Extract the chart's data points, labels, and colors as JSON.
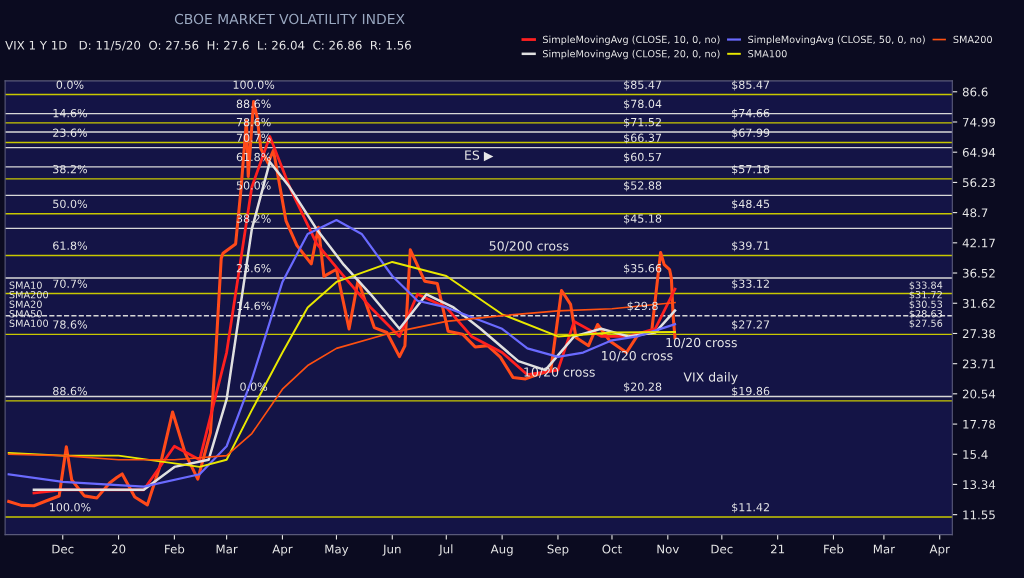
{
  "chart_data": {
    "type": "line",
    "title": "CBOE MARKET VOLATILITY INDEX",
    "subtitle": "VIX 1 Y 1D   D: 11/5/20  O: 27.56  H: 27.6  L: 26.04  C: 26.86  R: 1.56",
    "log": true,
    "xlim": [
      "2019-10-30",
      "2021-04-08"
    ],
    "xticks": [
      {
        "value": "2019-12-01",
        "label": "Dec"
      },
      {
        "value": "2020-01-01",
        "label": "20"
      },
      {
        "value": "2020-02-01",
        "label": "Feb"
      },
      {
        "value": "2020-03-01",
        "label": "Mar"
      },
      {
        "value": "2020-04-01",
        "label": "Apr"
      },
      {
        "value": "2020-05-01",
        "label": "May"
      },
      {
        "value": "2020-06-01",
        "label": "Jun"
      },
      {
        "value": "2020-07-01",
        "label": "Jul"
      },
      {
        "value": "2020-08-01",
        "label": "Aug"
      },
      {
        "value": "2020-09-01",
        "label": "Sep"
      },
      {
        "value": "2020-10-01",
        "label": "Oct"
      },
      {
        "value": "2020-11-01",
        "label": "Nov"
      },
      {
        "value": "2020-12-01",
        "label": "Dec"
      },
      {
        "value": "2021-01-01",
        "label": "21"
      },
      {
        "value": "2021-02-01",
        "label": "Feb"
      },
      {
        "value": "2021-03-01",
        "label": "Mar"
      },
      {
        "value": "2021-04-01",
        "label": "Apr"
      }
    ],
    "ylim": [
      10.5,
      91.2
    ],
    "yticks": [
      11.55,
      13.34,
      15.4,
      17.78,
      20.54,
      23.71,
      27.38,
      31.62,
      36.52,
      42.17,
      48.7,
      56.23,
      64.94,
      74.99,
      86.6
    ],
    "legend": "top",
    "series": [
      {
        "color": "#ff4a1a",
        "x": [
          "2019-11-01",
          "2019-11-08",
          "2019-11-15",
          "2019-11-22",
          "2019-11-29",
          "2019-12-03",
          "2019-12-06",
          "2019-12-13",
          "2019-12-20",
          "2019-12-27",
          "2019-12-31",
          "2020-01-03",
          "2020-01-10",
          "2020-01-17",
          "2020-01-24",
          "2020-01-31",
          "2020-02-07",
          "2020-02-14",
          "2020-02-21",
          "2020-02-24",
          "2020-02-27",
          "2020-02-28",
          "2020-03-06",
          "2020-03-09",
          "2020-03-12",
          "2020-03-13",
          "2020-03-16",
          "2020-03-18",
          "2020-03-20",
          "2020-03-24",
          "2020-03-27",
          "2020-04-03",
          "2020-04-09",
          "2020-04-17",
          "2020-04-21",
          "2020-04-24",
          "2020-05-01",
          "2020-05-08",
          "2020-05-13",
          "2020-05-22",
          "2020-05-29",
          "2020-06-05",
          "2020-06-08",
          "2020-06-11",
          "2020-06-19",
          "2020-06-26",
          "2020-07-02",
          "2020-07-10",
          "2020-07-17",
          "2020-07-24",
          "2020-07-31",
          "2020-08-07",
          "2020-08-14",
          "2020-08-21",
          "2020-08-28",
          "2020-09-03",
          "2020-09-08",
          "2020-09-11",
          "2020-09-18",
          "2020-09-23",
          "2020-09-30",
          "2020-10-09",
          "2020-10-16",
          "2020-10-23",
          "2020-10-28",
          "2020-10-30",
          "2020-11-02",
          "2020-11-03",
          "2020-11-04",
          "2020-11-05"
        ],
        "values": [
          12.3,
          12.07,
          12.05,
          12.34,
          12.62,
          15.96,
          13.62,
          12.63,
          12.51,
          13.43,
          13.78,
          14.02,
          12.56,
          12.1,
          14.56,
          18.84,
          15.47,
          13.68,
          17.08,
          25.03,
          39.16,
          40.11,
          41.94,
          54.46,
          75.47,
          57.83,
          82.69,
          76.45,
          66.04,
          61.67,
          65.54,
          46.8,
          41.67,
          38.15,
          45.41,
          35.93,
          37.19,
          27.98,
          35.28,
          28.16,
          27.51,
          24.52,
          25.81,
          40.79,
          35.12,
          34.73,
          27.68,
          27.29,
          25.68,
          25.84,
          24.46,
          22.21,
          22.05,
          22.54,
          22.96,
          33.6,
          31.46,
          26.87,
          25.83,
          28.58,
          26.37,
          25.0,
          27.41,
          27.55,
          40.28,
          38.02,
          37.13,
          35.55,
          29.57,
          26.86
        ]
      },
      {
        "name": "SimpleMovingAvg (CLOSE, 10, 0, no)",
        "color": "#ff2020",
        "x": [
          "2019-11-15",
          "2019-12-01",
          "2020-01-15",
          "2020-02-01",
          "2020-02-15",
          "2020-03-01",
          "2020-03-15",
          "2020-03-25",
          "2020-04-05",
          "2020-04-20",
          "2020-05-05",
          "2020-05-20",
          "2020-06-05",
          "2020-06-15",
          "2020-07-01",
          "2020-07-15",
          "2020-08-01",
          "2020-08-15",
          "2020-09-01",
          "2020-09-10",
          "2020-09-25",
          "2020-10-10",
          "2020-10-25",
          "2020-11-05"
        ],
        "values": [
          12.8,
          13.0,
          13.0,
          16.0,
          15.0,
          25.0,
          55.0,
          70.0,
          55.0,
          42.0,
          36.0,
          31.0,
          27.0,
          33.0,
          31.0,
          27.0,
          25.0,
          22.5,
          23.0,
          29.0,
          27.0,
          27.0,
          28.0,
          33.84
        ]
      },
      {
        "name": "SimpleMovingAvg (CLOSE, 20, 0, no)",
        "color": "#e0e0e0",
        "x": [
          "2019-11-15",
          "2019-12-01",
          "2020-01-15",
          "2020-02-01",
          "2020-02-20",
          "2020-03-01",
          "2020-03-15",
          "2020-03-25",
          "2020-04-05",
          "2020-04-20",
          "2020-05-05",
          "2020-05-20",
          "2020-06-05",
          "2020-06-20",
          "2020-07-05",
          "2020-07-20",
          "2020-08-10",
          "2020-08-25",
          "2020-09-10",
          "2020-09-25",
          "2020-10-10",
          "2020-10-25",
          "2020-11-05"
        ],
        "values": [
          13.0,
          13.0,
          13.0,
          14.5,
          15.0,
          20.0,
          45.0,
          62.0,
          55.0,
          45.0,
          38.0,
          33.0,
          28.0,
          33.0,
          31.0,
          28.0,
          24.0,
          23.0,
          27.0,
          28.0,
          27.0,
          27.5,
          30.53
        ]
      },
      {
        "name": "SimpleMovingAvg (CLOSE, 50, 0, no)",
        "color": "#6a6aff",
        "x": [
          "2019-11-01",
          "2019-12-01",
          "2020-01-15",
          "2020-02-15",
          "2020-03-01",
          "2020-03-15",
          "2020-04-01",
          "2020-04-15",
          "2020-05-01",
          "2020-05-15",
          "2020-06-01",
          "2020-06-15",
          "2020-07-01",
          "2020-08-01",
          "2020-08-15",
          "2020-09-01",
          "2020-09-15",
          "2020-10-01",
          "2020-10-15",
          "2020-11-05"
        ],
        "values": [
          14.0,
          13.5,
          13.2,
          14.0,
          16.0,
          22.0,
          35.0,
          44.0,
          47.0,
          44.0,
          36.0,
          32.0,
          31.0,
          28.0,
          25.5,
          24.5,
          25.0,
          26.5,
          27.0,
          28.62
        ]
      },
      {
        "name": "SMA100",
        "color": "#e8e800",
        "x": [
          "2019-11-01",
          "2019-12-01",
          "2020-01-01",
          "2020-02-15",
          "2020-03-01",
          "2020-03-15",
          "2020-04-01",
          "2020-04-15",
          "2020-05-01",
          "2020-06-01",
          "2020-07-01",
          "2020-08-01",
          "2020-09-01",
          "2020-10-01",
          "2020-11-05"
        ],
        "values": [
          15.5,
          15.3,
          15.3,
          14.5,
          15.0,
          19.0,
          25.0,
          31.0,
          35.0,
          38.5,
          36.0,
          30.0,
          27.0,
          27.5,
          27.56
        ]
      },
      {
        "name": "SMA200",
        "color": "#ff5010",
        "x": [
          "2019-11-01",
          "2019-12-01",
          "2020-01-01",
          "2020-02-01",
          "2020-03-01",
          "2020-03-15",
          "2020-04-01",
          "2020-04-15",
          "2020-05-01",
          "2020-06-01",
          "2020-07-01",
          "2020-08-01",
          "2020-09-01",
          "2020-10-01",
          "2020-11-05"
        ],
        "values": [
          15.4,
          15.3,
          15.0,
          15.0,
          15.3,
          17.0,
          21.0,
          23.5,
          25.5,
          27.5,
          29.0,
          29.8,
          30.5,
          30.8,
          31.72
        ]
      }
    ],
    "ref_lines": [
      {
        "axis": "y",
        "value": 85.47,
        "color": "#c8c800"
      },
      {
        "axis": "y",
        "value": 78.04,
        "color": "#d8d8d8"
      },
      {
        "axis": "y",
        "value": 74.66,
        "color": "#c8c800"
      },
      {
        "axis": "y",
        "value": 71.52,
        "color": "#d8d8d8"
      },
      {
        "axis": "y",
        "value": 67.99,
        "color": "#c8c800"
      },
      {
        "axis": "y",
        "value": 66.37,
        "color": "#d8d8d8"
      },
      {
        "axis": "y",
        "value": 60.57,
        "color": "#d8d8d8"
      },
      {
        "axis": "y",
        "value": 57.18,
        "color": "#c8c800"
      },
      {
        "axis": "y",
        "value": 52.88,
        "color": "#d8d8d8"
      },
      {
        "axis": "y",
        "value": 48.45,
        "color": "#c8c800"
      },
      {
        "axis": "y",
        "value": 45.18,
        "color": "#d8d8d8"
      },
      {
        "axis": "y",
        "value": 39.71,
        "color": "#c8c800"
      },
      {
        "axis": "y",
        "value": 35.66,
        "color": "#d8d8d8"
      },
      {
        "axis": "y",
        "value": 33.12,
        "color": "#c8c800"
      },
      {
        "axis": "y",
        "value": 29.8,
        "color": "#d8d8d8",
        "line_style": "dashed"
      },
      {
        "axis": "y",
        "value": 27.27,
        "color": "#c8c800"
      },
      {
        "axis": "y",
        "value": 20.28,
        "color": "#d8d8d8"
      },
      {
        "axis": "y",
        "value": 19.86,
        "color": "#c8c800"
      },
      {
        "axis": "y",
        "value": 11.42,
        "color": "#c8c800"
      }
    ],
    "annotations": [
      {
        "text": "$85.47",
        "x": "2020-10-18",
        "y": 85.47
      },
      {
        "text": "$85.47",
        "x": "2020-12-17",
        "y": 85.47
      },
      {
        "text": "$78.04",
        "x": "2020-10-18",
        "y": 78.04
      },
      {
        "text": "$74.66",
        "x": "2020-12-17",
        "y": 74.66
      },
      {
        "text": "$71.52",
        "x": "2020-10-18",
        "y": 71.52
      },
      {
        "text": "$67.99",
        "x": "2020-12-17",
        "y": 67.99
      },
      {
        "text": "$66.37",
        "x": "2020-10-18",
        "y": 66.37
      },
      {
        "text": "$60.57",
        "x": "2020-10-18",
        "y": 60.57
      },
      {
        "text": "$57.18",
        "x": "2020-12-17",
        "y": 57.18
      },
      {
        "text": "$52.88",
        "x": "2020-10-18",
        "y": 52.88
      },
      {
        "text": "$48.45",
        "x": "2020-12-17",
        "y": 48.45
      },
      {
        "text": "$45.18",
        "x": "2020-10-18",
        "y": 45.18
      },
      {
        "text": "$39.71",
        "x": "2020-12-17",
        "y": 39.71
      },
      {
        "text": "$35.66",
        "x": "2020-10-18",
        "y": 35.66
      },
      {
        "text": "$33.12",
        "x": "2020-12-17",
        "y": 33.12
      },
      {
        "text": "$29.8",
        "x": "2020-10-18",
        "y": 29.8
      },
      {
        "text": "$27.27",
        "x": "2020-12-17",
        "y": 27.27
      },
      {
        "text": "$20.28",
        "x": "2020-10-18",
        "y": 20.28
      },
      {
        "text": "$19.86",
        "x": "2020-12-17",
        "y": 19.86
      },
      {
        "text": "$11.42",
        "x": "2020-12-17",
        "y": 11.42
      },
      {
        "text": "0.0%",
        "x": "2019-11-23",
        "y": 85.47
      },
      {
        "text": "14.6%",
        "x": "2019-11-23",
        "y": 74.66
      },
      {
        "text": "23.6%",
        "x": "2019-11-23",
        "y": 67.99
      },
      {
        "text": "38.2%",
        "x": "2019-11-23",
        "y": 57.18
      },
      {
        "text": "50.0%",
        "x": "2019-11-23",
        "y": 48.45
      },
      {
        "text": "61.8%",
        "x": "2019-11-23",
        "y": 39.71
      },
      {
        "text": "70.7%",
        "x": "2019-11-23",
        "y": 33.12
      },
      {
        "text": "78.6%",
        "x": "2019-11-23",
        "y": 27.27
      },
      {
        "text": "88.6%",
        "x": "2019-11-23",
        "y": 19.86
      },
      {
        "text": "100.0%",
        "x": "2019-11-23",
        "y": 11.42
      },
      {
        "text": "100.0%",
        "x": "2020-03-16",
        "y": 85.47
      },
      {
        "text": "88.6%",
        "x": "2020-03-16",
        "y": 78.04
      },
      {
        "text": "78.6%",
        "x": "2020-03-16",
        "y": 71.52
      },
      {
        "text": "70.7%",
        "x": "2020-03-16",
        "y": 66.37
      },
      {
        "text": "61.8%",
        "x": "2020-03-16",
        "y": 60.57
      },
      {
        "text": "50.0%",
        "x": "2020-03-16",
        "y": 52.88
      },
      {
        "text": "38.2%",
        "x": "2020-03-16",
        "y": 45.18
      },
      {
        "text": "23.6%",
        "x": "2020-03-16",
        "y": 35.66
      },
      {
        "text": "14.6%",
        "x": "2020-03-16",
        "y": 29.8
      },
      {
        "text": "0.0%",
        "x": "2020-03-16",
        "y": 20.28
      },
      "ES ▶",
      "50/200 cross",
      "10/20 cross",
      "10/20 cross",
      "10/20 cross",
      "VIX daily",
      "SMA10",
      "SMA200",
      "SMA20",
      "SMA50",
      "SMA100",
      "$33.84",
      "$31.72",
      "$30.53",
      "$28.63",
      "$27.56"
    ]
  }
}
